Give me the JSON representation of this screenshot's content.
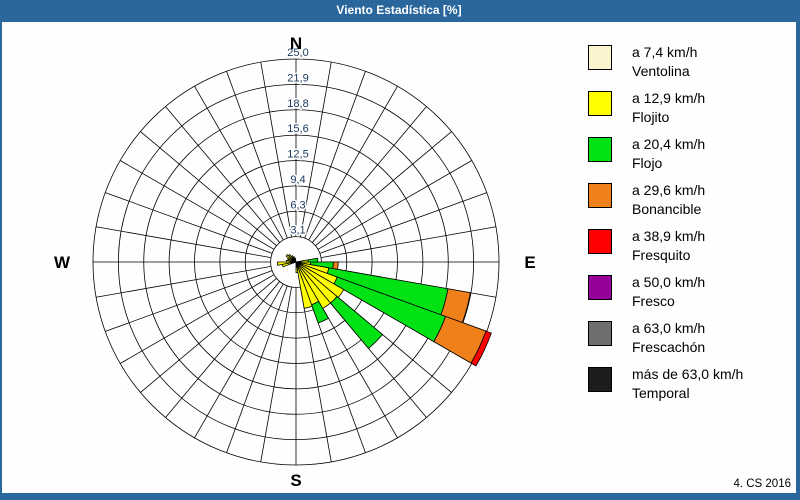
{
  "window": {
    "title": "Viento Estadística [%]",
    "credit": "4. CS 2016"
  },
  "colors": {
    "titlebar": "#2a679d",
    "frame": "#2a679d",
    "grid": "#000000",
    "ring_label": "#17375d",
    "background": "#fdfefd"
  },
  "speed_classes": [
    {
      "speed": "a 7,4 km/h",
      "name": "Ventolina",
      "color": "#fbf3ce"
    },
    {
      "speed": "a 12,9 km/h",
      "name": "Flojito",
      "color": "#ffff00"
    },
    {
      "speed": "a 20,4 km/h",
      "name": "Flojo",
      "color": "#00e214"
    },
    {
      "speed": "a 29,6 km/h",
      "name": "Bonancible",
      "color": "#f08019"
    },
    {
      "speed": "a 38,9 km/h",
      "name": "Fresquito",
      "color": "#ff0000"
    },
    {
      "speed": "a 50,0 km/h",
      "name": "Fresco",
      "color": "#95009b"
    },
    {
      "speed": "a 63,0 km/h",
      "name": "Frescachón",
      "color": "#6f6f6f"
    },
    {
      "speed": "más de 63,0 km/h",
      "name": "Temporal",
      "color": "#1d1d1d"
    }
  ],
  "chart_data": {
    "type": "windrose",
    "units": "%",
    "title": "Viento Estadística [%]",
    "compass_labels": {
      "n": "N",
      "e": "E",
      "s": "S",
      "w": "W"
    },
    "sectors": 36,
    "sector_width_deg": 10,
    "rmax": 25.0,
    "ring_values": [
      3.125,
      6.25,
      9.375,
      12.5,
      15.625,
      18.75,
      21.875,
      25.0
    ],
    "ring_labels": [
      "3,1",
      "6,3",
      "9,4",
      "12,5",
      "15,6",
      "18,8",
      "21,9",
      "25,0"
    ],
    "grid": true,
    "legend_position": "right",
    "petals": [
      {
        "az": 85,
        "segments": [
          {
            "class": 1,
            "to": 1.5
          },
          {
            "class": 2,
            "to": 2.7
          }
        ]
      },
      {
        "az": 95,
        "segments": [
          {
            "class": 1,
            "to": 1.8
          },
          {
            "class": 2,
            "to": 4.6
          },
          {
            "class": 3,
            "to": 5.2
          }
        ]
      },
      {
        "az": 105,
        "segments": [
          {
            "class": 0,
            "to": 0.5
          },
          {
            "class": 1,
            "to": 4.1
          },
          {
            "class": 2,
            "to": 19.0
          },
          {
            "class": 3,
            "to": 21.8
          }
        ]
      },
      {
        "az": 115,
        "segments": [
          {
            "class": 0,
            "to": 0.5
          },
          {
            "class": 1,
            "to": 5.4
          },
          {
            "class": 2,
            "to": 19.6
          },
          {
            "class": 3,
            "to": 24.9
          },
          {
            "class": 4,
            "to": 25.6
          }
        ]
      },
      {
        "az": 125,
        "segments": [
          {
            "class": 1,
            "to": 6.8
          }
        ]
      },
      {
        "az": 135,
        "segments": [
          {
            "class": 1,
            "to": 6.6
          },
          {
            "class": 2,
            "to": 13.9
          }
        ]
      },
      {
        "az": 145,
        "segments": [
          {
            "class": 1,
            "to": 6.6
          }
        ]
      },
      {
        "az": 155,
        "segments": [
          {
            "class": 1,
            "to": 5.6
          },
          {
            "class": 2,
            "to": 8.0
          }
        ]
      },
      {
        "az": 165,
        "segments": [
          {
            "class": 1,
            "to": 5.8
          }
        ]
      },
      {
        "az": 175,
        "segments": [
          {
            "class": 1,
            "to": 1.3
          }
        ]
      },
      {
        "az": 255,
        "segments": [
          {
            "class": 1,
            "to": 1.7
          }
        ]
      },
      {
        "az": 265,
        "segments": [
          {
            "class": 1,
            "to": 2.3
          }
        ]
      },
      {
        "az": 275,
        "segments": [
          {
            "class": 0,
            "to": 0.5
          },
          {
            "class": 1,
            "to": 1.2
          }
        ]
      },
      {
        "az": 285,
        "segments": [
          {
            "class": 1,
            "to": 1.0
          }
        ]
      },
      {
        "az": 295,
        "segments": [
          {
            "class": 1,
            "to": 1.1
          }
        ]
      },
      {
        "az": 305,
        "segments": [
          {
            "class": 0,
            "to": 0.6
          },
          {
            "class": 1,
            "to": 1.4
          }
        ]
      },
      {
        "az": 315,
        "segments": [
          {
            "class": 1,
            "to": 1.2
          }
        ]
      },
      {
        "az": 325,
        "segments": [
          {
            "class": 0,
            "to": 0.5
          },
          {
            "class": 1,
            "to": 0.9
          }
        ]
      },
      {
        "az": 335,
        "segments": [
          {
            "class": 1,
            "to": 0.7
          }
        ]
      },
      {
        "az": 345,
        "segments": [
          {
            "class": 0,
            "to": 0.5
          }
        ]
      }
    ]
  }
}
